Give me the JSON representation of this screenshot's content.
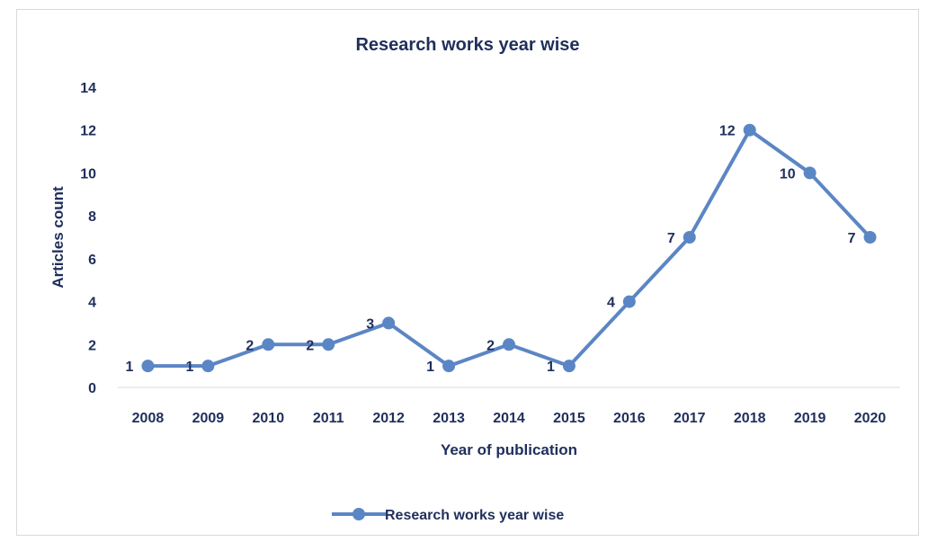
{
  "chart_data": {
    "type": "line",
    "title": "Research works year wise",
    "xlabel": "Year of publication",
    "ylabel": "Articles count",
    "categories": [
      "2008",
      "2009",
      "2010",
      "2011",
      "2012",
      "2013",
      "2014",
      "2015",
      "2016",
      "2017",
      "2018",
      "2019",
      "2020"
    ],
    "series": [
      {
        "name": "Research works year wise",
        "values": [
          1,
          1,
          2,
          2,
          3,
          1,
          2,
          1,
          4,
          7,
          12,
          10,
          7
        ],
        "color": "#5b86c5"
      }
    ],
    "ylim": [
      0,
      14
    ],
    "yticks": [
      "0",
      "2",
      "4",
      "6",
      "8",
      "10",
      "12",
      "14"
    ],
    "data_labels": [
      "1",
      "1",
      "2",
      "2",
      "3",
      "1",
      "2",
      "1",
      "4",
      "7",
      "12",
      "10",
      "7"
    ],
    "grid": false,
    "legend": "bottom",
    "text_color": "#1f2f5c"
  }
}
